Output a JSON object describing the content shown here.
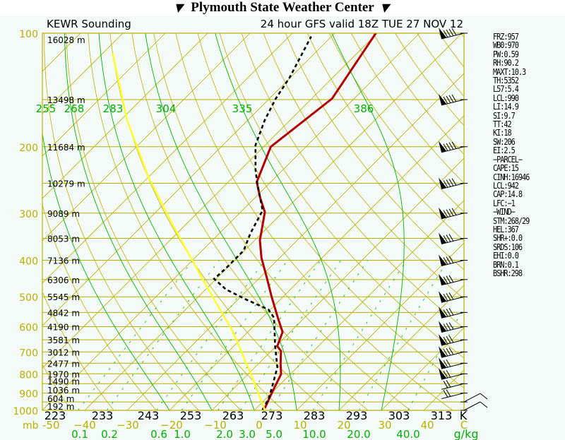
{
  "header": {
    "title": "Plymouth State Weather Center",
    "station": "KEWR Sounding",
    "valid": "24 hour GFS valid 18Z TUE 27 NOV 12"
  },
  "colors": {
    "temp": "#b00000",
    "dewpoint": "#000000",
    "parcel": "#ffff33",
    "grid_yellow": "#b8b000",
    "grid_green": "#00b000",
    "background": "#f4faf7"
  },
  "stats": [
    "FRZ:957",
    "WB0:970",
    "PW:0.59",
    "RH:90.2",
    "MAXT:10.3",
    "TH:5352",
    "L57:5.4",
    "LCL:990",
    "LI:14.9",
    "SI:9.7",
    "TT:42",
    "KI:18",
    "SW:206",
    "EI:2.5",
    "−PARCEL−",
    "CAPE:15",
    "CINH:16946",
    "LCL:942",
    "CAP:14.8",
    "LFC:−1",
    "−WIND−",
    "STM:268/29",
    "HEL:367",
    "SHR+:0.0",
    "SRDS:106",
    "EHI:0.0",
    "BRN:0.1",
    "BSHR:298"
  ],
  "chart_data": {
    "type": "line",
    "title": "KEWR Sounding",
    "xlabel": "C",
    "ylabel": "mb",
    "xlim": [
      -50,
      50
    ],
    "ylim": [
      1000,
      100
    ],
    "pressure_labels": [
      "100",
      "200",
      "300",
      "400",
      "500",
      "600",
      "700",
      "800",
      "900",
      "1000"
    ],
    "pressure_unit": "mb",
    "temp_ticks": [
      "-50",
      "−40",
      "−30",
      "−20",
      "−10",
      "0",
      "10",
      "20",
      "30",
      "40",
      "C"
    ],
    "kelvin_ticks": [
      "223",
      "233",
      "243",
      "253",
      "263",
      "273",
      "283",
      "293",
      "303",
      "313",
      "K"
    ],
    "mixing_ratio_ticks": [
      "0.1",
      "0.2",
      "0.6",
      "1.0",
      "2.0",
      "3.0",
      "5.0",
      "10.0",
      "20.0",
      "40.0"
    ],
    "mixing_ratio_unit": "g/kg",
    "theta_labels": [
      "255",
      "268",
      "283",
      "304",
      "335",
      "386"
    ],
    "heights": [
      {
        "p": 100,
        "label": "16028 m"
      },
      {
        "p": 150,
        "label": "13498 m"
      },
      {
        "p": 200,
        "label": "11684 m"
      },
      {
        "p": 250,
        "label": "10279 m"
      },
      {
        "p": 300,
        "label": "9089 m"
      },
      {
        "p": 350,
        "label": "8053 m"
      },
      {
        "p": 400,
        "label": "7136 m"
      },
      {
        "p": 450,
        "label": "6306 m"
      },
      {
        "p": 500,
        "label": "5545 m"
      },
      {
        "p": 550,
        "label": "4842 m"
      },
      {
        "p": 600,
        "label": "4190 m"
      },
      {
        "p": 650,
        "label": "3581 m"
      },
      {
        "p": 700,
        "label": "3012 m"
      },
      {
        "p": 750,
        "label": "2477 m"
      },
      {
        "p": 800,
        "label": "1970 m"
      },
      {
        "p": 850,
        "label": "1490 m"
      },
      {
        "p": 900,
        "label": "1036 m"
      },
      {
        "p": 950,
        "label": "604 m"
      },
      {
        "p": 1000,
        "label": "192 m"
      }
    ],
    "series": [
      {
        "name": "Temperature",
        "points": [
          [
            987,
            2.0
          ],
          [
            933,
            0.8
          ],
          [
            875,
            -0.5
          ],
          [
            802,
            -2.2
          ],
          [
            752,
            -4.8
          ],
          [
            696,
            -7.7
          ],
          [
            676,
            -9.7
          ],
          [
            620,
            -11.8
          ],
          [
            568,
            -16.3
          ],
          [
            500,
            -22.7
          ],
          [
            448,
            -28
          ],
          [
            394,
            -34.3
          ],
          [
            354,
            -38.8
          ],
          [
            298,
            -44.3
          ],
          [
            273,
            -48.8
          ],
          [
            248,
            -53.3
          ],
          [
            200,
            -58.3
          ],
          [
            149,
            -55.2
          ],
          [
            100,
            -60.3
          ]
        ]
      },
      {
        "name": "Dewpoint",
        "points": [
          [
            996,
            1.8
          ],
          [
            933,
            0.7
          ],
          [
            867,
            -1.3
          ],
          [
            769,
            -4.7
          ],
          [
            676,
            -10.2
          ],
          [
            568,
            -17.2
          ],
          [
            540,
            -20.5
          ],
          [
            510,
            -27.7
          ],
          [
            478,
            -35.2
          ],
          [
            448,
            -40.5
          ],
          [
            420,
            -40.2
          ],
          [
            377,
            -40.2
          ],
          [
            339,
            -42.7
          ],
          [
            295,
            -45.2
          ],
          [
            251,
            -52.7
          ],
          [
            230,
            -56.5
          ],
          [
            198,
            -62.3
          ],
          [
            170,
            -66
          ],
          [
            149,
            -68.5
          ],
          [
            131,
            -70.2
          ],
          [
            102,
            -74.8
          ]
        ]
      },
      {
        "name": "Parcel",
        "points": [
          [
            996,
            2.3
          ],
          [
            802,
            -9.3
          ],
          [
            620,
            -23.5
          ],
          [
            459,
            -41.8
          ],
          [
            324,
            -62.7
          ],
          [
            240,
            -80.2
          ],
          [
            170,
            -98.5
          ],
          [
            113,
            -117.7
          ]
        ]
      }
    ],
    "wind_levels_mb": [
      100,
      150,
      200,
      250,
      300,
      350,
      400,
      450,
      500,
      550,
      600,
      650,
      700,
      750,
      800,
      850,
      900,
      950,
      1000
    ]
  }
}
